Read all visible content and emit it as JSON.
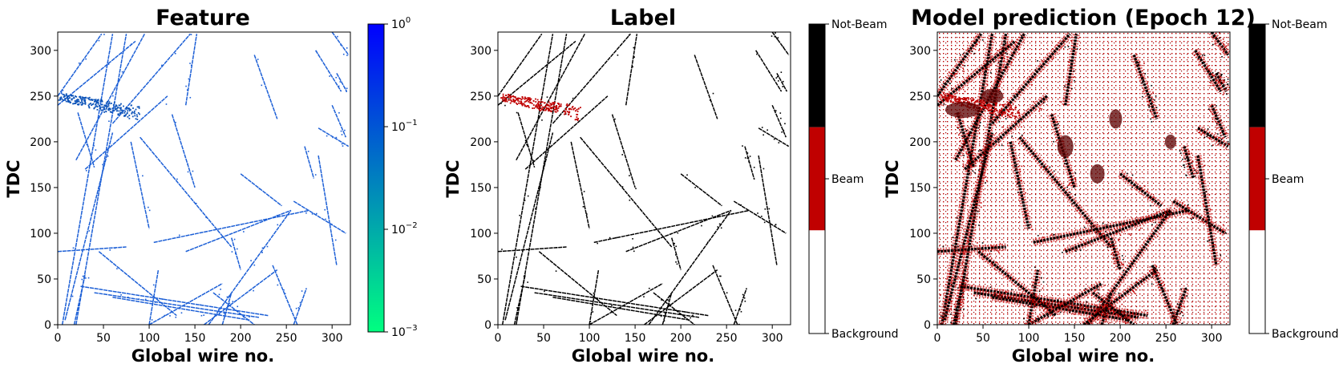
{
  "chart_data": [
    {
      "type": "heatmap",
      "title": "Feature",
      "xlabel": "Global wire no.",
      "ylabel": "TDC",
      "xlim": [
        0,
        320
      ],
      "ylim": [
        0,
        320
      ],
      "xticks": [
        "0",
        "50",
        "100",
        "150",
        "200",
        "250",
        "300"
      ],
      "yticks": [
        "0",
        "50",
        "100",
        "150",
        "200",
        "250",
        "300"
      ],
      "colorbar": {
        "scale": "log",
        "range": [
          0.001,
          1
        ],
        "ticks": [
          {
            "base": "10",
            "exp": "0",
            "value": 1
          },
          {
            "base": "10",
            "exp": "−1",
            "value": 0.1
          },
          {
            "base": "10",
            "exp": "−2",
            "value": 0.01
          },
          {
            "base": "10",
            "exp": "−3",
            "value": 0.001
          }
        ],
        "colors": [
          "#00ff80",
          "#0000ff"
        ]
      },
      "track_color": "#1c5fd6",
      "beam_color": "#0b52b8"
    },
    {
      "type": "heatmap",
      "title": "Label",
      "xlabel": "Global wire no.",
      "ylabel": "TDC",
      "xlim": [
        0,
        320
      ],
      "ylim": [
        0,
        320
      ],
      "xticks": [
        "0",
        "50",
        "100",
        "150",
        "200",
        "250",
        "300"
      ],
      "yticks": [
        "0",
        "50",
        "100",
        "150",
        "200",
        "250",
        "300"
      ],
      "colorbar": {
        "scale": "categorical",
        "categories": [
          {
            "label": "Not-Beam",
            "color": "#000000"
          },
          {
            "label": "Beam",
            "color": "#c00000"
          },
          {
            "label": "Background",
            "color": "#ffffff"
          }
        ]
      }
    },
    {
      "type": "heatmap",
      "title": "Model prediction (Epoch 12)",
      "xlabel": "Global wire no.",
      "ylabel": "TDC",
      "xlim": [
        0,
        320
      ],
      "ylim": [
        0,
        320
      ],
      "xticks": [
        "0",
        "50",
        "100",
        "150",
        "200",
        "250",
        "300"
      ],
      "yticks": [
        "0",
        "50",
        "100",
        "150",
        "200",
        "250",
        "300"
      ],
      "colorbar": {
        "scale": "categorical",
        "categories": [
          {
            "label": "Not-Beam",
            "color": "#000000"
          },
          {
            "label": "Beam",
            "color": "#c00000"
          },
          {
            "label": "Background",
            "color": "#ffffff"
          }
        ]
      }
    }
  ],
  "tracks": [
    {
      "x": [
        5,
        60
      ],
      "y": [
        0,
        318
      ]
    },
    {
      "x": [
        20,
        75
      ],
      "y": [
        0,
        318
      ]
    },
    {
      "x": [
        0,
        48
      ],
      "y": [
        250,
        318
      ]
    },
    {
      "x": [
        20,
        95
      ],
      "y": [
        180,
        318
      ]
    },
    {
      "x": [
        60,
        145
      ],
      "y": [
        220,
        318
      ]
    },
    {
      "x": [
        140,
        152
      ],
      "y": [
        240,
        318
      ]
    },
    {
      "x": [
        125,
        150
      ],
      "y": [
        230,
        150
      ]
    },
    {
      "x": [
        30,
        120
      ],
      "y": [
        170,
        250
      ]
    },
    {
      "x": [
        22,
        40
      ],
      "y": [
        232,
        172
      ]
    },
    {
      "x": [
        80,
        100
      ],
      "y": [
        200,
        105
      ]
    },
    {
      "x": [
        8,
        60
      ],
      "y": [
        5,
        210
      ]
    },
    {
      "x": [
        0,
        85
      ],
      "y": [
        240,
        310
      ]
    },
    {
      "x": [
        90,
        190
      ],
      "y": [
        205,
        85
      ]
    },
    {
      "x": [
        100,
        110
      ],
      "y": [
        0,
        60
      ]
    },
    {
      "x": [
        0,
        75
      ],
      "y": [
        80,
        85
      ]
    },
    {
      "x": [
        105,
        275
      ],
      "y": [
        90,
        125
      ]
    },
    {
      "x": [
        140,
        255
      ],
      "y": [
        80,
        125
      ]
    },
    {
      "x": [
        165,
        255
      ],
      "y": [
        0,
        125
      ]
    },
    {
      "x": [
        258,
        315
      ],
      "y": [
        135,
        100
      ]
    },
    {
      "x": [
        200,
        245
      ],
      "y": [
        165,
        130
      ]
    },
    {
      "x": [
        215,
        240
      ],
      "y": [
        295,
        225
      ]
    },
    {
      "x": [
        235,
        262
      ],
      "y": [
        65,
        0
      ]
    },
    {
      "x": [
        270,
        280
      ],
      "y": [
        195,
        160
      ]
    },
    {
      "x": [
        285,
        305
      ],
      "y": [
        185,
        65
      ]
    },
    {
      "x": [
        285,
        318
      ],
      "y": [
        215,
        195
      ]
    },
    {
      "x": [
        305,
        316
      ],
      "y": [
        275,
        255
      ]
    },
    {
      "x": [
        300,
        315
      ],
      "y": [
        240,
        205
      ]
    },
    {
      "x": [
        282,
        310
      ],
      "y": [
        300,
        255
      ]
    },
    {
      "x": [
        300,
        318
      ],
      "y": [
        320,
        295
      ]
    },
    {
      "x": [
        25,
        230
      ],
      "y": [
        42,
        10
      ]
    },
    {
      "x": [
        40,
        220
      ],
      "y": [
        35,
        8
      ]
    },
    {
      "x": [
        60,
        210
      ],
      "y": [
        30,
        5
      ]
    },
    {
      "x": [
        100,
        180
      ],
      "y": [
        0,
        45
      ]
    },
    {
      "x": [
        45,
        130
      ],
      "y": [
        80,
        10
      ]
    },
    {
      "x": [
        160,
        240
      ],
      "y": [
        0,
        60
      ]
    },
    {
      "x": [
        170,
        215
      ],
      "y": [
        35,
        0
      ]
    },
    {
      "x": [
        180,
        190
      ],
      "y": [
        0,
        35
      ]
    },
    {
      "x": [
        258,
        272
      ],
      "y": [
        0,
        40
      ]
    },
    {
      "x": [
        18,
        30
      ],
      "y": [
        0,
        55
      ]
    },
    {
      "x": [
        190,
        200
      ],
      "y": [
        95,
        60
      ]
    }
  ],
  "beam_center": [
    48,
    240
  ]
}
